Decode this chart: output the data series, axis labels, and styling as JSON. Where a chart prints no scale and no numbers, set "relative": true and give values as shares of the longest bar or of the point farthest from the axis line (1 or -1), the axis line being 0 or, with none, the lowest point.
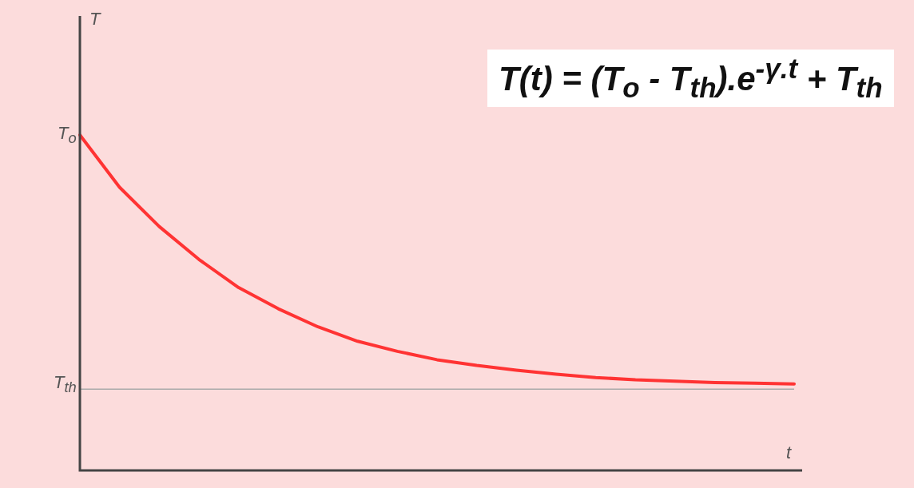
{
  "chart_data": {
    "type": "line",
    "relative": true,
    "xlabel": "t",
    "categories": [
      null,
      null,
      null,
      null,
      null,
      null,
      null,
      null,
      null,
      null,
      null,
      null,
      null,
      null,
      null,
      null,
      null,
      null,
      null
    ],
    "series": [
      {
        "color": "#ff3333",
        "values": [
          1.0,
          0.844,
          0.727,
          0.629,
          0.545,
          0.482,
          0.428,
          0.385,
          0.355,
          0.33,
          0.313,
          0.299,
          0.287,
          0.277,
          0.27,
          0.266,
          0.262,
          0.26,
          0.258
        ]
      }
    ],
    "ref_lines": [
      {
        "axis": "y",
        "value": 0.242,
        "label": "T$_{th}$",
        "color": "#aaaaaa"
      }
    ],
    "annotations": [
      "T$_{o}$",
      "T(t) = (T$_{o}$ - T$_{th}$).e$^{-γ.t}$ + T$_{th}$",
      "T"
    ],
    "marker": "none",
    "line_style": "solid",
    "grid": false,
    "legend": false
  }
}
